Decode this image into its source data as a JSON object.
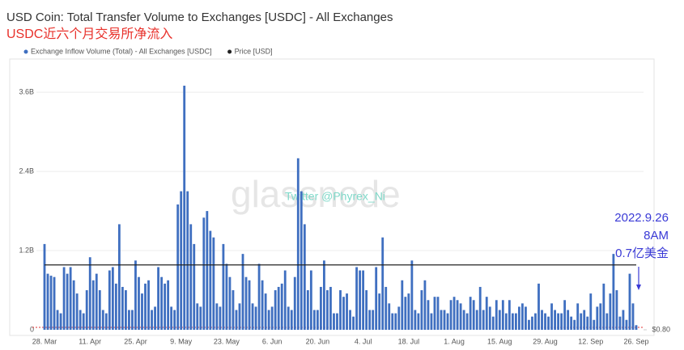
{
  "chart_data": {
    "type": "bar",
    "title": "USD Coin: Total Transfer Volume to Exchanges [USDC] - All Exchanges",
    "subtitle": "USDC近六个月交易所净流入",
    "watermark": "glassnode",
    "credit": "Twitter @Phyrex_Ni",
    "annotations": [
      "2022.9.26",
      "8AM",
      "0.7亿美金"
    ],
    "categories": [
      "28. Mar",
      null,
      null,
      null,
      null,
      null,
      null,
      null,
      null,
      null,
      null,
      null,
      null,
      null,
      "11. Apr",
      null,
      null,
      null,
      null,
      null,
      null,
      null,
      null,
      null,
      null,
      null,
      null,
      null,
      "25. Apr",
      null,
      null,
      null,
      null,
      null,
      null,
      null,
      null,
      null,
      null,
      null,
      null,
      null,
      "9. May",
      null,
      null,
      null,
      null,
      null,
      null,
      null,
      null,
      null,
      null,
      null,
      null,
      null,
      "23. May",
      null,
      null,
      null,
      null,
      null,
      null,
      null,
      null,
      null,
      null,
      null,
      null,
      null,
      "6. Jun",
      null,
      null,
      null,
      null,
      null,
      null,
      null,
      null,
      null,
      null,
      null,
      null,
      null,
      "20. Jun",
      null,
      null,
      null,
      null,
      null,
      null,
      null,
      null,
      null,
      null,
      null,
      null,
      null,
      "4. Jul",
      null,
      null,
      null,
      null,
      null,
      null,
      null,
      null,
      null,
      null,
      null,
      null,
      null,
      "18. Jul",
      null,
      null,
      null,
      null,
      null,
      null,
      null,
      null,
      null,
      null,
      null,
      null,
      null,
      "1. Aug",
      null,
      null,
      null,
      null,
      null,
      null,
      null,
      null,
      null,
      null,
      null,
      null,
      null,
      "15. Aug",
      null,
      null,
      null,
      null,
      null,
      null,
      null,
      null,
      null,
      null,
      null,
      null,
      null,
      "29. Aug",
      null,
      null,
      null,
      null,
      null,
      null,
      null,
      null,
      null,
      null,
      null,
      null,
      null,
      "12. Sep",
      null,
      null,
      null,
      null,
      null,
      null,
      null,
      null,
      null,
      null,
      null,
      null,
      null,
      "26. Sep"
    ],
    "series": [
      {
        "name": "Exchange Inflow Volume (Total) - All Exchanges [USDC]",
        "type": "bar",
        "color": "#3f6fc0",
        "values": [
          1.3,
          0.85,
          0.82,
          0.8,
          0.3,
          0.25,
          0.95,
          0.85,
          0.95,
          0.75,
          0.55,
          0.3,
          0.25,
          0.6,
          1.1,
          0.75,
          0.85,
          0.6,
          0.3,
          0.25,
          0.9,
          0.95,
          0.7,
          1.6,
          0.65,
          0.6,
          0.3,
          0.3,
          1.05,
          0.8,
          0.55,
          0.7,
          0.75,
          0.3,
          0.35,
          0.95,
          0.8,
          0.7,
          0.75,
          0.35,
          0.3,
          1.9,
          2.1,
          3.7,
          2.1,
          1.6,
          1.3,
          0.4,
          0.35,
          1.7,
          1.8,
          1.5,
          1.4,
          0.4,
          0.35,
          1.3,
          1.0,
          0.8,
          0.6,
          0.3,
          0.4,
          1.15,
          0.8,
          0.75,
          0.4,
          0.35,
          1.0,
          0.75,
          0.55,
          0.3,
          0.35,
          0.6,
          0.65,
          0.7,
          0.9,
          0.35,
          0.3,
          0.8,
          2.6,
          2.1,
          1.6,
          0.6,
          0.9,
          0.3,
          0.3,
          0.65,
          1.05,
          0.6,
          0.65,
          0.25,
          0.25,
          0.6,
          0.5,
          0.55,
          0.3,
          0.2,
          0.95,
          0.9,
          0.9,
          0.6,
          0.3,
          0.3,
          0.95,
          0.55,
          1.4,
          0.65,
          0.4,
          0.25,
          0.25,
          0.35,
          0.75,
          0.5,
          0.55,
          1.05,
          0.3,
          0.25,
          0.6,
          0.75,
          0.45,
          0.25,
          0.5,
          0.5,
          0.3,
          0.3,
          0.25,
          0.45,
          0.5,
          0.45,
          0.4,
          0.3,
          0.25,
          0.5,
          0.45,
          0.3,
          0.65,
          0.3,
          0.5,
          0.35,
          0.2,
          0.45,
          0.3,
          0.45,
          0.25,
          0.45,
          0.25,
          0.25,
          0.35,
          0.4,
          0.35,
          0.15,
          0.2,
          0.25,
          0.7,
          0.3,
          0.25,
          0.2,
          0.4,
          0.3,
          0.25,
          0.25,
          0.45,
          0.3,
          0.2,
          0.15,
          0.4,
          0.25,
          0.3,
          0.2,
          0.55,
          0.15,
          0.35,
          0.4,
          0.7,
          0.25,
          0.55,
          1.15,
          0.6,
          0.2,
          0.3,
          0.15,
          0.85,
          0.4,
          0.07
        ]
      },
      {
        "name": "Price [USD]",
        "type": "line",
        "axis": "y2",
        "color": "#222222",
        "values": [
          1,
          1,
          1,
          1,
          1,
          1,
          1,
          1,
          1,
          1,
          1,
          1,
          1,
          1,
          1,
          1,
          1,
          1,
          1,
          1,
          1,
          1,
          1,
          1,
          1,
          1,
          1,
          1,
          1,
          1,
          1,
          1,
          1,
          1,
          1,
          1,
          1,
          1,
          1,
          1,
          1,
          1,
          1,
          1,
          1,
          1,
          1,
          1,
          1,
          1,
          1,
          1,
          1,
          1,
          1,
          1,
          1,
          1,
          1,
          1,
          1,
          1,
          1,
          1,
          1,
          1,
          1,
          1,
          1,
          1,
          1,
          1,
          1,
          1,
          1,
          1,
          1,
          1,
          1,
          1,
          1,
          1,
          1,
          1,
          1,
          1,
          1,
          1,
          1,
          1,
          1,
          1,
          1,
          1,
          1,
          1,
          1,
          1,
          1,
          1,
          1,
          1,
          1,
          1,
          1,
          1,
          1,
          1,
          1,
          1,
          1,
          1,
          1,
          1,
          1,
          1,
          1,
          1,
          1,
          1,
          1,
          1,
          1,
          1,
          1,
          1,
          1,
          1,
          1,
          1,
          1,
          1,
          1,
          1,
          1,
          1,
          1,
          1,
          1,
          1,
          1,
          1,
          1,
          1,
          1,
          1,
          1,
          1,
          1,
          1,
          1,
          1,
          1,
          1,
          1,
          1,
          1,
          1,
          1,
          1,
          1,
          1,
          1,
          1,
          1,
          1,
          1,
          1,
          1,
          1,
          1,
          1,
          1,
          1,
          1,
          1,
          1,
          1,
          1,
          1,
          1,
          1,
          1
        ]
      }
    ],
    "ylim": [
      0,
      4.08
    ],
    "yticks": [
      0,
      {
        "value": 1.2,
        "label": "1.2B"
      },
      {
        "value": 2.4,
        "label": "2.4B"
      },
      {
        "value": 3.6,
        "label": "3.6B"
      }
    ],
    "y2lim": [
      0.8,
      1.63
    ],
    "y2ticks": [
      {
        "value": 0.8,
        "label": "$0.80"
      }
    ],
    "grid": true,
    "legend": "top"
  }
}
